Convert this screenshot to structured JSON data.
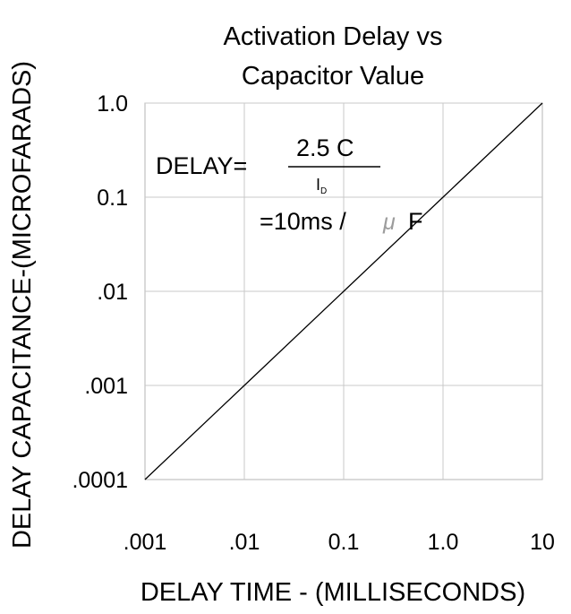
{
  "chart_data": {
    "type": "line",
    "title": "Activation Delay vs",
    "subtitle": "Capacitor Value",
    "xlabel": "DELAY  TIME  -  (MILLISECONDS)",
    "ylabel": "DELAY  CAPACITANCE-(MICROFARADS)",
    "x_scale": "log",
    "y_scale": "log",
    "xlim": [
      0.001,
      10
    ],
    "ylim": [
      0.0001,
      1
    ],
    "x_ticks": [
      0.001,
      0.01,
      0.1,
      1,
      10
    ],
    "x_tick_labels": [
      ".001",
      ".01",
      "0.1",
      "1.0",
      "10"
    ],
    "y_ticks": [
      0.0001,
      0.001,
      0.01,
      0.1,
      1
    ],
    "y_tick_labels": [
      ".0001",
      ".001",
      ".01",
      "0.1",
      "1.0"
    ],
    "grid": true,
    "series": [
      {
        "x": [
          0.001,
          0.01,
          0.1,
          1,
          10
        ],
        "y": [
          0.0001,
          0.001,
          0.01,
          0.1,
          1
        ]
      }
    ],
    "annotation": {
      "lhs": "DELAY=",
      "numerator": "2.5  C",
      "denominator": "I",
      "denominator_sub": "D",
      "rate": "=10ms  /",
      "mu": "μ",
      "unit": "F"
    }
  },
  "colors": {
    "line": "#000000",
    "grid": "#c8c8c8",
    "frame": "#b4b4b4",
    "mu": "#9c9c9c"
  }
}
